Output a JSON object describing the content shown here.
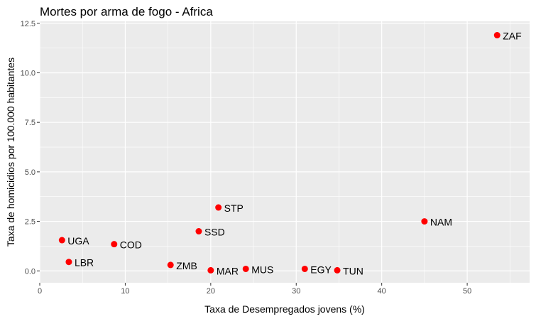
{
  "chart_data": {
    "type": "scatter",
    "title": "Mortes por arma de fogo - Africa",
    "xlabel": "Taxa de Desempregados jovens (%)",
    "ylabel": "Taxa de homicidios por 100.000 habitantes",
    "xlim": [
      0,
      57.3
    ],
    "ylim": [
      -0.6,
      12.6
    ],
    "x_ticks": [
      "0",
      "10",
      "20",
      "30",
      "40",
      "50"
    ],
    "y_ticks": [
      "0.0",
      "2.5",
      "5.0",
      "7.5",
      "10.0",
      "12.5"
    ],
    "grid": true,
    "legend": "none",
    "point_color": "#ff0000",
    "panel_color": "#ebebeb",
    "points": [
      {
        "label": "ZAF",
        "x": 53.5,
        "y": 11.9
      },
      {
        "label": "NAM",
        "x": 45.0,
        "y": 2.5
      },
      {
        "label": "STP",
        "x": 20.9,
        "y": 3.2
      },
      {
        "label": "SSD",
        "x": 18.6,
        "y": 2.0
      },
      {
        "label": "UGA",
        "x": 2.6,
        "y": 1.55
      },
      {
        "label": "COD",
        "x": 8.7,
        "y": 1.35
      },
      {
        "label": "LBR",
        "x": 3.4,
        "y": 0.45
      },
      {
        "label": "ZMB",
        "x": 15.3,
        "y": 0.3
      },
      {
        "label": "MAR",
        "x": 20.0,
        "y": 0.03
      },
      {
        "label": "MUS",
        "x": 24.1,
        "y": 0.1
      },
      {
        "label": "EGY",
        "x": 31.0,
        "y": 0.1
      },
      {
        "label": "TUN",
        "x": 34.8,
        "y": 0.03
      }
    ]
  }
}
